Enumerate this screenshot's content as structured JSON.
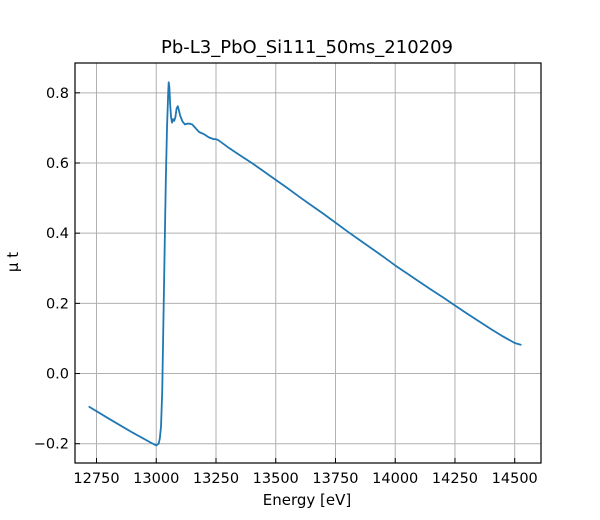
{
  "chart_data": {
    "type": "line",
    "title": "Pb-L3_PbO_Si111_50ms_210209",
    "xlabel": "Energy [eV]",
    "ylabel": "μ t",
    "xlim": [
      12660,
      14610
    ],
    "ylim": [
      -0.255,
      0.885
    ],
    "grid": true,
    "xticks": [
      12750,
      13000,
      13250,
      13500,
      13750,
      14000,
      14250,
      14500
    ],
    "xtick_labels": [
      "12750",
      "13000",
      "13250",
      "13500",
      "13750",
      "14000",
      "14250",
      "14500"
    ],
    "yticks": [
      -0.2,
      0.0,
      0.2,
      0.4,
      0.6,
      0.8
    ],
    "ytick_labels": [
      "−0.2",
      "0.0",
      "0.2",
      "0.4",
      "0.6",
      "0.8"
    ],
    "series": [
      {
        "color": "#1f77b4",
        "x": [
          12720,
          12800,
          12900,
          12980,
          13000,
          13010,
          13015,
          13020,
          13025,
          13030,
          13035,
          13040,
          13045,
          13050,
          13052,
          13055,
          13058,
          13062,
          13066,
          13070,
          13075,
          13080,
          13085,
          13090,
          13095,
          13100,
          13110,
          13120,
          13130,
          13140,
          13150,
          13160,
          13170,
          13180,
          13200,
          13220,
          13240,
          13250,
          13260,
          13280,
          13300,
          13350,
          13400,
          13450,
          13500,
          13550,
          13600,
          13650,
          13700,
          13750,
          13800,
          13850,
          13900,
          13950,
          14000,
          14050,
          14100,
          14150,
          14200,
          14250,
          14300,
          14350,
          14400,
          14450,
          14500,
          14525
        ],
        "y": [
          -0.095,
          -0.128,
          -0.168,
          -0.198,
          -0.205,
          -0.2,
          -0.185,
          -0.15,
          -0.05,
          0.15,
          0.35,
          0.55,
          0.7,
          0.8,
          0.83,
          0.815,
          0.77,
          0.73,
          0.715,
          0.725,
          0.72,
          0.73,
          0.755,
          0.762,
          0.75,
          0.735,
          0.718,
          0.71,
          0.712,
          0.712,
          0.71,
          0.703,
          0.695,
          0.688,
          0.682,
          0.673,
          0.668,
          0.668,
          0.665,
          0.655,
          0.645,
          0.622,
          0.6,
          0.576,
          0.552,
          0.528,
          0.503,
          0.479,
          0.455,
          0.43,
          0.405,
          0.381,
          0.357,
          0.333,
          0.308,
          0.285,
          0.262,
          0.239,
          0.217,
          0.194,
          0.171,
          0.149,
          0.127,
          0.106,
          0.087,
          0.082
        ]
      }
    ]
  }
}
